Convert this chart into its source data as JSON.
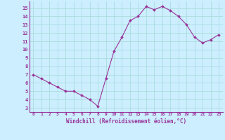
{
  "x": [
    0,
    1,
    2,
    3,
    4,
    5,
    6,
    7,
    8,
    9,
    10,
    11,
    12,
    13,
    14,
    15,
    16,
    17,
    18,
    19,
    20,
    21,
    22,
    23
  ],
  "y": [
    7.0,
    6.5,
    6.0,
    5.5,
    5.0,
    5.0,
    4.5,
    4.0,
    3.2,
    6.5,
    9.8,
    11.5,
    13.5,
    14.0,
    15.2,
    14.8,
    15.2,
    14.7,
    14.0,
    13.0,
    11.5,
    10.8,
    11.2,
    11.8
  ],
  "line_color": "#993399",
  "marker": "D",
  "marker_size": 1.8,
  "line_width": 0.8,
  "xlabel": "Windchill (Refroidissement éolien,°C)",
  "xlabel_fontsize": 5.5,
  "xtick_fontsize": 4.5,
  "ytick_fontsize": 5.0,
  "xlim": [
    -0.5,
    23.5
  ],
  "ylim": [
    2.5,
    15.8
  ],
  "yticks": [
    3,
    4,
    5,
    6,
    7,
    8,
    9,
    10,
    11,
    12,
    13,
    14,
    15
  ],
  "xticks": [
    0,
    1,
    2,
    3,
    4,
    5,
    6,
    7,
    8,
    9,
    10,
    11,
    12,
    13,
    14,
    15,
    16,
    17,
    18,
    19,
    20,
    21,
    22,
    23
  ],
  "background_color": "#cceeff",
  "grid_color": "#aadddd",
  "tick_color": "#993399",
  "spine_color": "#993399"
}
